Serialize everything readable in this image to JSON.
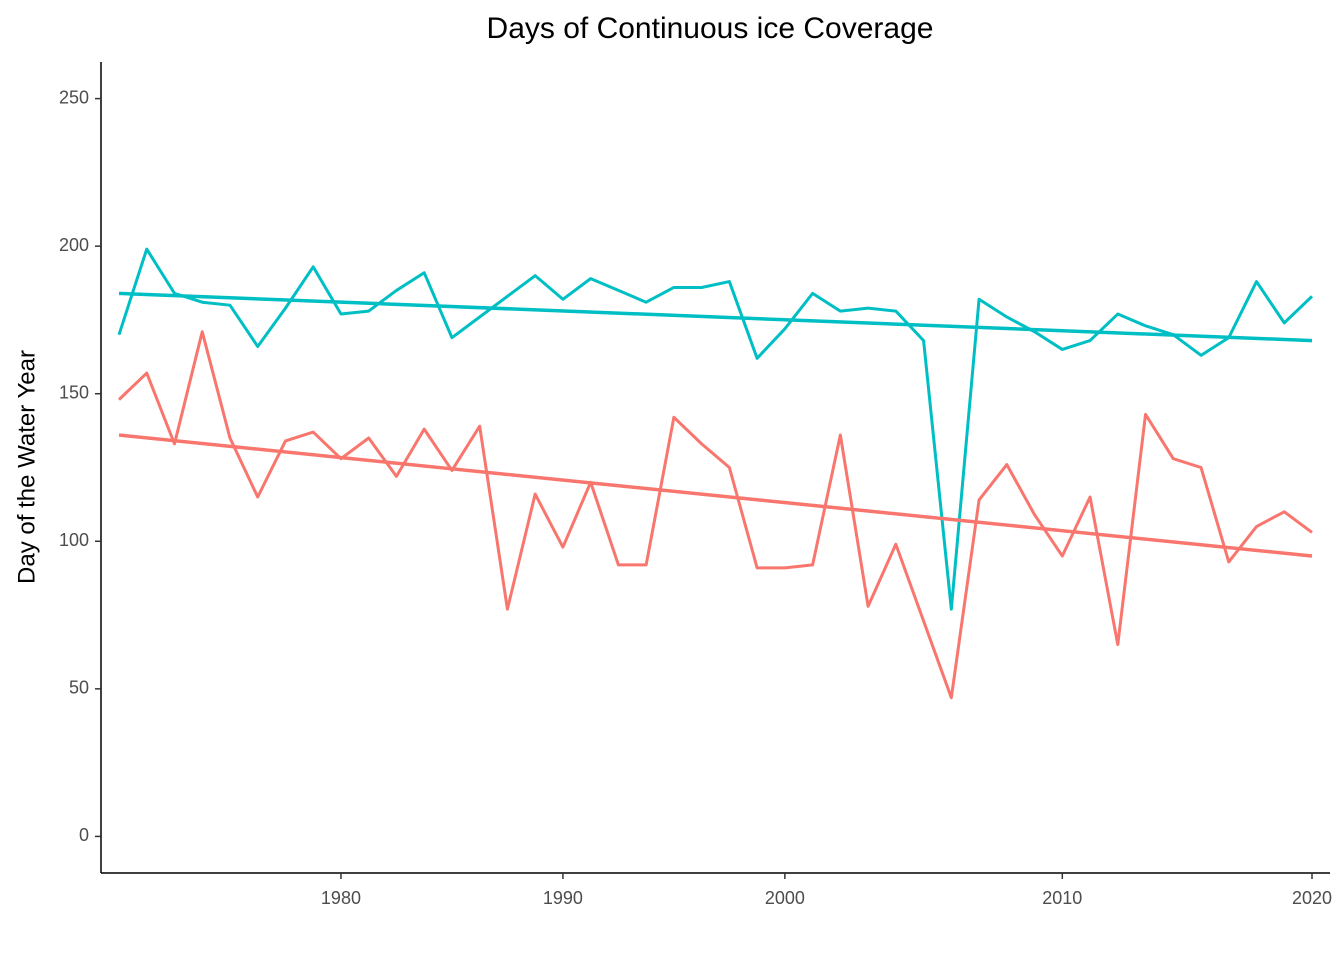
{
  "chart_data": {
    "type": "line",
    "title": "Days of Continuous ice Coverage",
    "y_label": "Day of the Water Year",
    "categories": [
      null,
      null,
      null,
      null,
      null,
      null,
      null,
      null,
      "1980",
      null,
      null,
      null,
      null,
      null,
      null,
      null,
      "1990",
      null,
      null,
      null,
      null,
      null,
      null,
      null,
      "2000",
      null,
      null,
      null,
      null,
      null,
      null,
      null,
      null,
      null,
      "2010",
      null,
      null,
      null,
      null,
      null,
      null,
      null,
      null,
      "2020"
    ],
    "series": [
      {
        "color": "#F8766D",
        "values": [
          148,
          157,
          133,
          171,
          135,
          115,
          134,
          137,
          128,
          135,
          122,
          138,
          124,
          139,
          77,
          116,
          98,
          120,
          92,
          92,
          142,
          133,
          125,
          91,
          91,
          92,
          136,
          78,
          99,
          73,
          47,
          114,
          126,
          109,
          95,
          115,
          65,
          143,
          128,
          125,
          93,
          105,
          110,
          103
        ]
      },
      {
        "color": "#00BFC4",
        "values": [
          170,
          199,
          184,
          181,
          180,
          166,
          179,
          193,
          177,
          178,
          185,
          191,
          169,
          176,
          183,
          190,
          182,
          189,
          185,
          181,
          186,
          186,
          188,
          162,
          172,
          184,
          178,
          179,
          178,
          168,
          77,
          182,
          176,
          171,
          165,
          168,
          177,
          173,
          170,
          163,
          169,
          188,
          174,
          183
        ]
      }
    ],
    "trends": [
      {
        "color": "#F8766D",
        "start": 136,
        "end": 95
      },
      {
        "color": "#00BFC4",
        "start": 184,
        "end": 168
      }
    ],
    "ylim": [
      -12.4,
      262.4
    ],
    "yticks": [
      0,
      50,
      100,
      150,
      200,
      250
    ]
  }
}
